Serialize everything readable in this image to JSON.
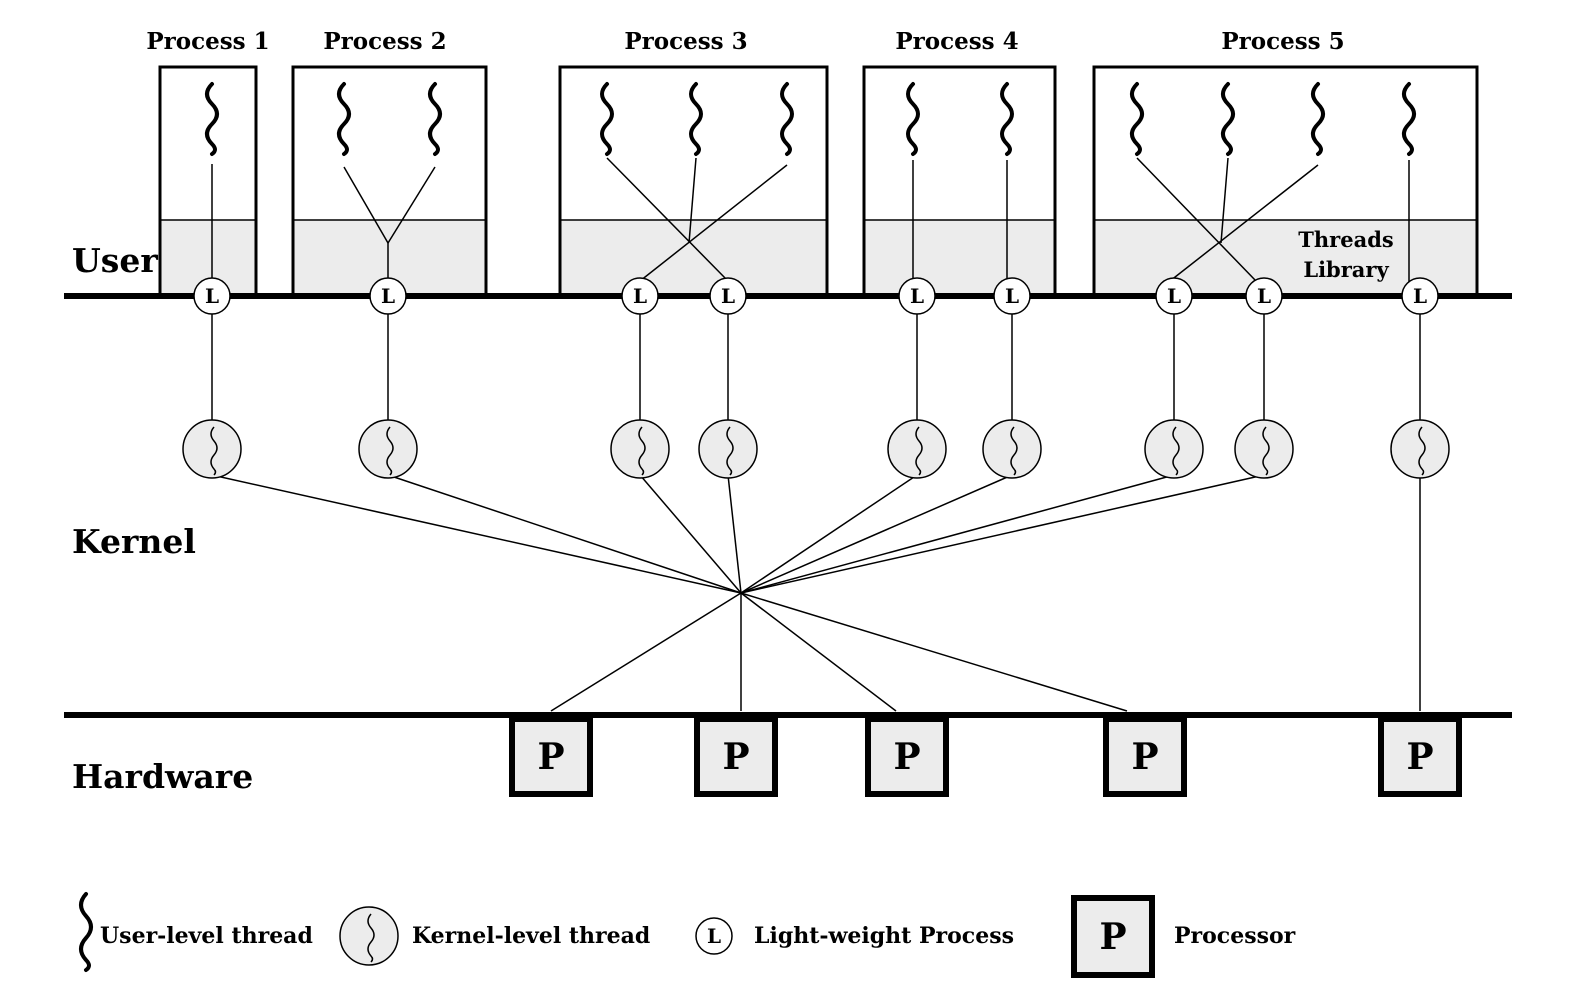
{
  "processes": [
    {
      "title": "Process 1"
    },
    {
      "title": "Process 2"
    },
    {
      "title": "Process 3"
    },
    {
      "title": "Process 4"
    },
    {
      "title": "Process 5"
    }
  ],
  "layers": {
    "user": "User",
    "kernel": "Kernel",
    "hardware": "Hardware"
  },
  "threads_library": {
    "line1": "Threads",
    "line2": "Library"
  },
  "lwp_symbol": "L",
  "processor_symbol": "P",
  "legend": {
    "user_thread": "User-level thread",
    "kernel_thread": "Kernel-level thread",
    "lwp": "Light-weight Process",
    "processor": "Processor"
  },
  "colors": {
    "library_fill": "#ececec",
    "node_fill": "#ececec",
    "processor_fill": "#ececec",
    "stroke": "#000000"
  }
}
